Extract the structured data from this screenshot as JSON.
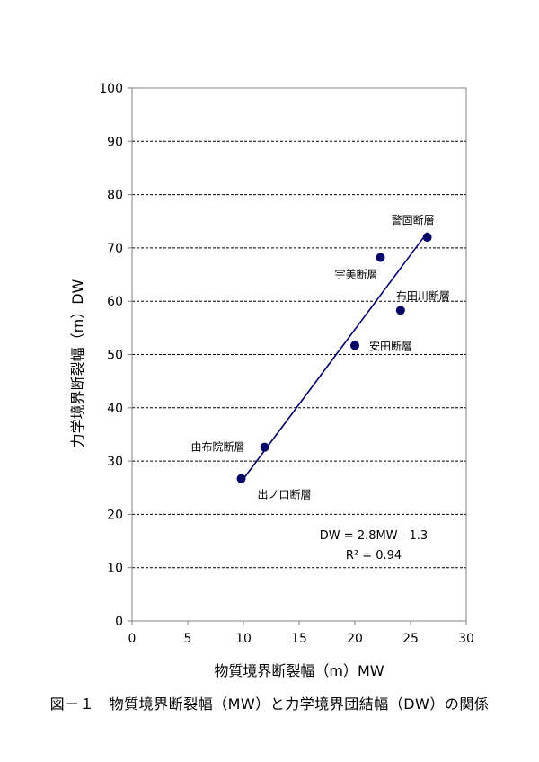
{
  "caption": "図－１　物質境界断裂幅（MW）と力学境界団結幅（DW）の関係",
  "chart_data": {
    "type": "scatter",
    "xlabel": "物質境界断裂幅（m）MW",
    "ylabel": "力学境界断裂幅（m）DW",
    "xlim": [
      0,
      30
    ],
    "ylim": [
      0,
      100
    ],
    "xticks": [
      0,
      5,
      10,
      15,
      20,
      25,
      30
    ],
    "yticks": [
      0,
      10,
      20,
      30,
      40,
      50,
      60,
      70,
      80,
      90,
      100
    ],
    "grid": "horizontal dashed",
    "colors": {
      "marker": "#000066",
      "line": "#000066"
    },
    "points": [
      {
        "label": "出ノ口断層",
        "x": 9.8,
        "y": 26.7
      },
      {
        "label": "由布院断層",
        "x": 11.9,
        "y": 32.6
      },
      {
        "label": "安田断層",
        "x": 20.0,
        "y": 51.7
      },
      {
        "label": "宇美断層",
        "x": 22.3,
        "y": 68.2
      },
      {
        "label": "布田川断層",
        "x": 24.1,
        "y": 58.3
      },
      {
        "label": "警固断層",
        "x": 26.5,
        "y": 72.0
      }
    ],
    "trendline": {
      "x": [
        9.8,
        26.5
      ],
      "y": [
        26.1,
        72.9
      ]
    },
    "annotation": {
      "equation": "DW = 2.8MW - 1.3",
      "r2": "R² = 0.94"
    }
  }
}
